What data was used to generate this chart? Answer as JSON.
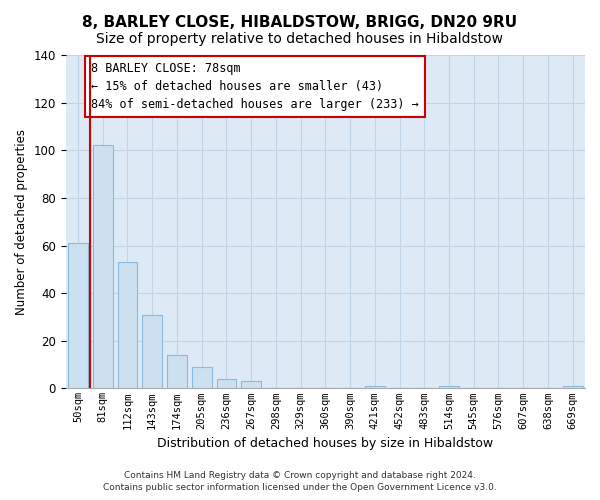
{
  "title": "8, BARLEY CLOSE, HIBALDSTOW, BRIGG, DN20 9RU",
  "subtitle": "Size of property relative to detached houses in Hibaldstow",
  "xlabel": "Distribution of detached houses by size in Hibaldstow",
  "ylabel": "Number of detached properties",
  "bar_labels": [
    "50sqm",
    "81sqm",
    "112sqm",
    "143sqm",
    "174sqm",
    "205sqm",
    "236sqm",
    "267sqm",
    "298sqm",
    "329sqm",
    "360sqm",
    "390sqm",
    "421sqm",
    "452sqm",
    "483sqm",
    "514sqm",
    "545sqm",
    "576sqm",
    "607sqm",
    "638sqm",
    "669sqm"
  ],
  "bar_values": [
    61,
    102,
    53,
    31,
    14,
    9,
    4,
    3,
    0,
    0,
    0,
    0,
    1,
    0,
    0,
    1,
    0,
    0,
    0,
    0,
    1
  ],
  "bar_color": "#cce0f0",
  "bar_edge_color": "#88bbdd",
  "red_line_color": "#cc0000",
  "red_line_x": 0.5,
  "ylim": [
    0,
    140
  ],
  "yticks": [
    0,
    20,
    40,
    60,
    80,
    100,
    120,
    140
  ],
  "annotation_line1": "8 BARLEY CLOSE: 78sqm",
  "annotation_line2": "← 15% of detached houses are smaller (43)",
  "annotation_line3": "84% of semi-detached houses are larger (233) →",
  "annotation_box_color": "#ffffff",
  "annotation_box_edge_color": "#cc0000",
  "footer_line1": "Contains HM Land Registry data © Crown copyright and database right 2024.",
  "footer_line2": "Contains public sector information licensed under the Open Government Licence v3.0.",
  "background_color": "#ffffff",
  "plot_bg_color": "#ddeaf5",
  "grid_color": "#c0d5e8",
  "title_fontsize": 11,
  "subtitle_fontsize": 10
}
